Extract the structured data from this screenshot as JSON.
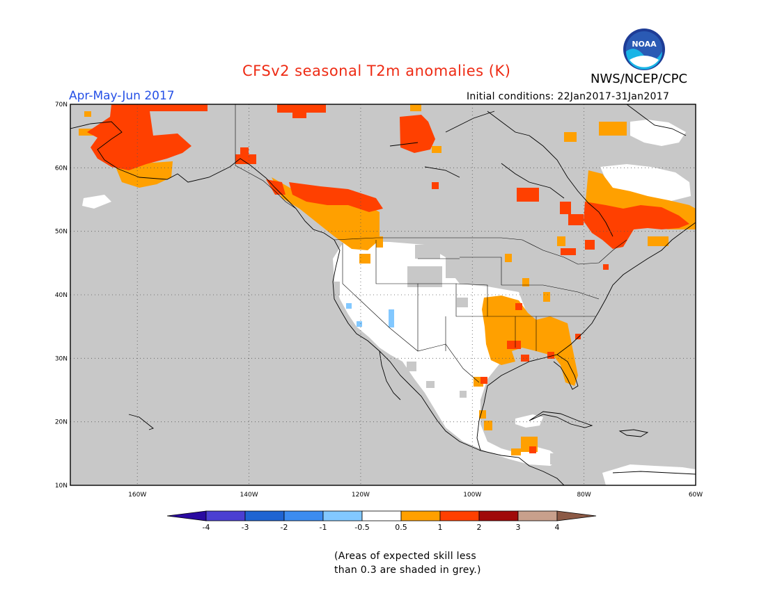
{
  "title": "CFSv2 seasonal T2m anomalies (K)",
  "agency": "NWS/NCEP/CPC",
  "logo_text": "NOAA",
  "season": "Apr-May-Jun 2017",
  "initial_conditions": "Initial conditions: 22Jan2017-31Jan2017",
  "footnote_line1": "(Areas of expected skill less",
  "footnote_line2": "than 0.3 are shaded in grey.)",
  "map": {
    "lon_range": [
      -172,
      -60
    ],
    "lat_range": [
      10,
      70
    ],
    "lon_ticks": [
      "160W",
      "140W",
      "120W",
      "100W",
      "80W",
      "60W"
    ],
    "lat_ticks": [
      "10N",
      "20N",
      "30N",
      "40N",
      "50N",
      "60N",
      "70N"
    ],
    "colors": {
      "low_skill_grey": "#c8c8c8",
      "neutral": "#ffffff",
      "plus_0_5_to_1": "#ffa000",
      "plus_1_to_2": "#ff4000",
      "minus_0_5_to_1": "#82c8ff"
    }
  },
  "colorbar": {
    "labels": [
      "-4",
      "-3",
      "-2",
      "-1",
      "-0.5",
      "0.5",
      "1",
      "2",
      "3",
      "4"
    ],
    "colors": [
      "#2a0aa0",
      "#4b3fd2",
      "#1f64d2",
      "#3c8cf0",
      "#82c8ff",
      "#ffffff",
      "#ffa000",
      "#ff4000",
      "#a00a0a",
      "#c8a08c",
      "#8c5a46"
    ]
  }
}
